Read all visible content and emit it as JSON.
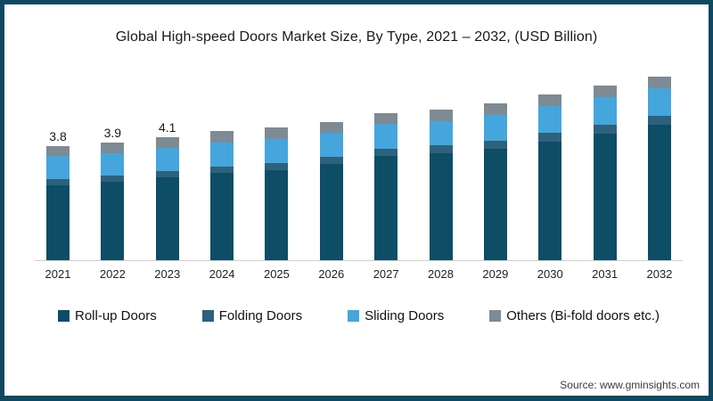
{
  "title": "Global High-speed Doors Market Size, By Type, 2021 – 2032, (USD Billion)",
  "source": "Source: www.gminsights.com",
  "frame_border_color": "#0e4861",
  "axis_line_color": "#cfcfcf",
  "chart_data": {
    "type": "bar",
    "stacked": true,
    "title": "Global High-speed Doors Market Size, By Type, 2021 – 2032, (USD Billion)",
    "xlabel": "",
    "ylabel": "USD Billion",
    "grid": false,
    "legend_position": "bottom",
    "categories": [
      "2021",
      "2022",
      "2023",
      "2024",
      "2025",
      "2026",
      "2027",
      "2028",
      "2029",
      "2030",
      "2031",
      "2032"
    ],
    "series": [
      {
        "name": "Roll-up Doors",
        "color": "#0d4d66",
        "values": [
          2.5,
          2.6,
          2.75,
          2.9,
          3.0,
          3.2,
          3.45,
          3.55,
          3.7,
          3.95,
          4.2,
          4.5
        ]
      },
      {
        "name": "Folding Doors",
        "color": "#2e617c",
        "values": [
          0.2,
          0.2,
          0.21,
          0.22,
          0.23,
          0.24,
          0.25,
          0.26,
          0.27,
          0.28,
          0.29,
          0.3
        ]
      },
      {
        "name": "Sliding Doors",
        "color": "#44a6dd",
        "values": [
          0.75,
          0.75,
          0.77,
          0.8,
          0.79,
          0.78,
          0.82,
          0.81,
          0.85,
          0.89,
          0.93,
          0.92
        ]
      },
      {
        "name": "Others (Bi-fold doors etc.)",
        "color": "#7e8a94",
        "values": [
          0.35,
          0.35,
          0.37,
          0.38,
          0.38,
          0.38,
          0.38,
          0.38,
          0.38,
          0.38,
          0.38,
          0.38
        ]
      }
    ],
    "totals_estimated": [
      3.8,
      3.9,
      4.1,
      4.3,
      4.4,
      4.6,
      4.9,
      5.0,
      5.2,
      5.5,
      5.8,
      6.1
    ],
    "data_labels": [
      "3.8",
      "3.9",
      "4.1",
      null,
      null,
      null,
      null,
      null,
      null,
      null,
      null,
      null
    ],
    "ylim": [
      0,
      6.3
    ]
  },
  "legend": {
    "items": [
      {
        "label": "Roll-up Doors",
        "color": "#0d4d66"
      },
      {
        "label": "Folding Doors",
        "color": "#2e617c"
      },
      {
        "label": "Sliding Doors",
        "color": "#44a6dd"
      },
      {
        "label": "Others (Bi-fold doors etc.)",
        "color": "#7e8a94"
      }
    ]
  }
}
